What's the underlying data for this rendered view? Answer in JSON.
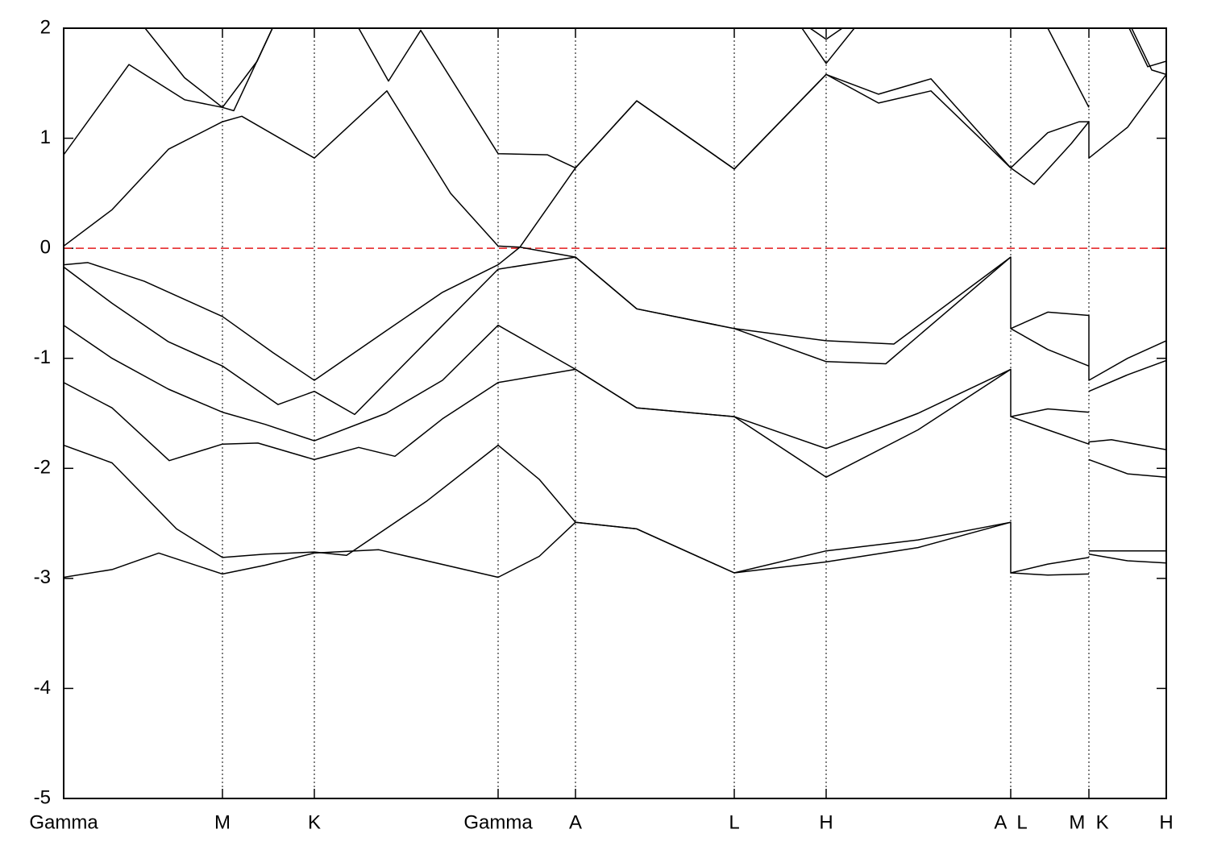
{
  "chart_data": {
    "type": "line",
    "xlim": [
      0,
      1368
    ],
    "ylim": [
      -5,
      2
    ],
    "yticks": [
      -5,
      -4,
      -3,
      -2,
      -1,
      0,
      1,
      2
    ],
    "xticks": [
      {
        "value": 0,
        "label": "Gamma"
      },
      {
        "value": 197,
        "label": "M"
      },
      {
        "value": 311,
        "label": "K"
      },
      {
        "value": 539,
        "label": "Gamma"
      },
      {
        "value": 635,
        "label": "A"
      },
      {
        "value": 832,
        "label": "L"
      },
      {
        "value": 946,
        "label": "H"
      },
      {
        "value": 1175,
        "label": "A  L"
      },
      {
        "value": 1272,
        "label": "M  K"
      },
      {
        "value": 1368,
        "label": "H"
      }
    ],
    "grid": "x",
    "reference_line": {
      "value": 0,
      "color": "#e41a1c"
    },
    "series": [
      {
        "color": "#000000",
        "x": [
          0,
          60,
          118,
          197,
          250,
          311,
          391,
          539,
          590,
          635,
          711,
          832,
          946,
          1060,
          1175,
          1175,
          1221,
          1272
        ],
        "values": [
          -2.99,
          -2.92,
          -2.77,
          -2.96,
          -2.88,
          -2.77,
          -2.74,
          -2.99,
          -2.8,
          -2.49,
          -2.55,
          -2.95,
          -2.85,
          -2.72,
          -2.49,
          -2.95,
          -2.97,
          -2.96
        ]
      },
      {
        "color": "#000000",
        "x": [
          0,
          60,
          140,
          197,
          250,
          311,
          351,
          450,
          539,
          590,
          635,
          711,
          832,
          946,
          1060,
          1175
        ],
        "values": [
          -1.79,
          -1.95,
          -2.55,
          -2.81,
          -2.78,
          -2.76,
          -2.79,
          -2.3,
          -1.79,
          -2.1,
          -2.49,
          -2.55,
          -2.95,
          -2.75,
          -2.65,
          -2.49
        ]
      },
      {
        "color": "#000000",
        "x": [
          0,
          60,
          131,
          197,
          241,
          311,
          366,
          411,
          470,
          539,
          635,
          711,
          832,
          946,
          1060,
          1175,
          1175,
          1221,
          1272
        ],
        "values": [
          -1.22,
          -1.45,
          -1.93,
          -1.78,
          -1.77,
          -1.92,
          -1.81,
          -1.89,
          -1.55,
          -1.22,
          -1.1,
          -1.45,
          -1.53,
          -1.82,
          -1.5,
          -1.1,
          -1.53,
          -1.46,
          -1.49
        ]
      },
      {
        "color": "#000000",
        "x": [
          0,
          60,
          130,
          197,
          250,
          311,
          400,
          470,
          539,
          635,
          711,
          832,
          946,
          1060,
          1175
        ],
        "values": [
          -0.7,
          -1.0,
          -1.28,
          -1.49,
          -1.6,
          -1.75,
          -1.5,
          -1.2,
          -0.7,
          -1.1,
          -1.45,
          -1.53,
          -2.08,
          -1.65,
          -1.1
        ]
      },
      {
        "color": "#000000",
        "x": [
          0,
          60,
          130,
          197,
          266,
          311,
          361,
          450,
          539,
          635,
          711,
          832,
          946,
          1020,
          1175,
          1175,
          1221,
          1272,
          1272,
          1320,
          1368
        ],
        "values": [
          -0.17,
          -0.5,
          -0.85,
          -1.07,
          -1.42,
          -1.3,
          -1.51,
          -0.85,
          -0.19,
          -0.08,
          -0.55,
          -0.73,
          -1.03,
          -1.05,
          -0.08,
          -0.73,
          -0.58,
          -0.61,
          -1.2,
          -1.0,
          -0.84
        ]
      },
      {
        "color": "#000000",
        "x": [
          0,
          30,
          100,
          197,
          260,
          311,
          400,
          470,
          539,
          566,
          635,
          711,
          832,
          946,
          1030,
          1175
        ],
        "values": [
          -0.15,
          -0.13,
          -0.3,
          -0.62,
          -0.95,
          -1.2,
          -0.75,
          -0.4,
          -0.15,
          0.01,
          -0.08,
          -0.55,
          -0.73,
          -0.84,
          -0.87,
          -0.08
        ]
      },
      {
        "color": "#000000",
        "x": [
          0,
          60,
          130,
          197,
          221,
          311,
          401,
          480,
          539,
          566,
          635,
          711,
          832,
          946,
          1011,
          1076,
          1175
        ],
        "values": [
          0.02,
          0.35,
          0.9,
          1.15,
          1.2,
          0.82,
          1.43,
          0.5,
          0.02,
          0.01,
          0.73,
          1.34,
          0.72,
          1.58,
          1.32,
          1.43,
          0.73
        ]
      },
      {
        "color": "#000000",
        "x": [
          0,
          81,
          150,
          197,
          211,
          259
        ],
        "values": [
          0.85,
          1.67,
          1.35,
          1.28,
          1.25,
          2.0
        ]
      },
      {
        "color": "#000000",
        "x": [
          366,
          403,
          443,
          539,
          600,
          635,
          711,
          832,
          946,
          1011,
          1076,
          1175
        ],
        "values": [
          2.0,
          1.52,
          1.98,
          0.86,
          0.85,
          0.73,
          1.34,
          0.72,
          1.58,
          1.4,
          1.54,
          0.73
        ]
      },
      {
        "color": "#000000",
        "x": [
          101,
          150,
          197,
          240,
          259
        ],
        "values": [
          2.0,
          1.55,
          1.28,
          1.7,
          2.0
        ]
      },
      {
        "color": "#000000",
        "x": [
          916,
          946,
          981
        ],
        "values": [
          2.0,
          1.68,
          2.0
        ]
      },
      {
        "color": "#000000",
        "x": [
          926,
          946,
          966
        ],
        "values": [
          2.0,
          1.9,
          2.0
        ]
      },
      {
        "color": "#000000",
        "x": [
          1175,
          1221,
          1272
        ],
        "values": [
          -2.95,
          -2.87,
          -2.81
        ]
      },
      {
        "color": "#000000",
        "x": [
          1175,
          1221,
          1272,
          1272,
          1300,
          1368
        ],
        "values": [
          -1.53,
          -1.65,
          -1.78,
          -1.76,
          -1.74,
          -1.83
        ]
      },
      {
        "color": "#000000",
        "x": [
          1175,
          1221,
          1272
        ],
        "values": [
          -0.73,
          -0.92,
          -1.07
        ]
      },
      {
        "color": "#000000",
        "x": [
          1175,
          1221,
          1260,
          1272,
          1272,
          1320,
          1368
        ],
        "values": [
          0.73,
          1.05,
          1.15,
          1.15,
          0.82,
          1.1,
          1.58
        ]
      },
      {
        "color": "#000000",
        "x": [
          1175,
          1204,
          1250,
          1272
        ],
        "values": [
          0.73,
          0.58,
          0.95,
          1.15
        ]
      },
      {
        "color": "#000000",
        "x": [
          1221,
          1272
        ],
        "values": [
          2.0,
          1.28
        ]
      },
      {
        "color": "#000000",
        "x": [
          1272,
          1320,
          1368
        ],
        "values": [
          -2.75,
          -2.75,
          -2.75
        ]
      },
      {
        "color": "#000000",
        "x": [
          1272,
          1320,
          1368
        ],
        "values": [
          -2.78,
          -2.84,
          -2.86
        ]
      },
      {
        "color": "#000000",
        "x": [
          1272,
          1320,
          1368
        ],
        "values": [
          -1.92,
          -2.05,
          -2.08
        ]
      },
      {
        "color": "#000000",
        "x": [
          1272,
          1320,
          1368
        ],
        "values": [
          -1.3,
          -1.15,
          -1.02
        ]
      },
      {
        "color": "#000000",
        "x": [
          1322,
          1345,
          1368
        ],
        "values": [
          2.0,
          1.65,
          1.7
        ]
      },
      {
        "color": "#000000",
        "x": [
          1325,
          1350,
          1368
        ],
        "values": [
          2.0,
          1.62,
          1.58
        ]
      }
    ]
  }
}
